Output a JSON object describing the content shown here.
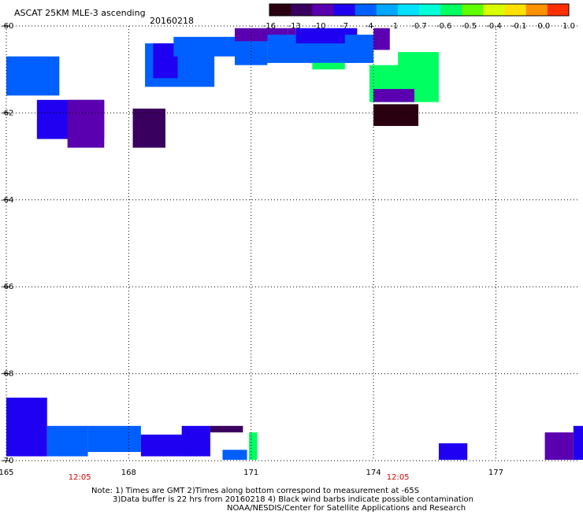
{
  "header": {
    "title": "ASCAT 25KM MLE-3 ascending",
    "date": "20160218"
  },
  "notes": {
    "line1": "Note: 1) Times are GMT 2)Times along bottom correspond to measurement at -65S",
    "line2": "3)Data buffer is 22 hrs from 20160218 4) Black wind barbs indicate possible contamination",
    "line3": "NOAA/NESDIS/Center for Satellite Applications and Research"
  },
  "colors": {
    "time_label": "#cc0000",
    "grid": "#000000",
    "scale": [
      "#2a0010",
      "#3a0060",
      "#5a00b0",
      "#2000f0",
      "#0060ff",
      "#00a8ff",
      "#00e0ff",
      "#00ffd8",
      "#00ff60",
      "#60ff00",
      "#d8ff00",
      "#ffe000",
      "#ff9000",
      "#ff3000"
    ]
  },
  "chart_data": {
    "type": "heatmap",
    "title": "ASCAT 25KM MLE-3 ascending",
    "subtitle": "20160218",
    "xlabel": "",
    "ylabel": "",
    "xlim": [
      165,
      179
    ],
    "ylim": [
      -60,
      -70
    ],
    "x_ticks": [
      "165",
      "168",
      "171",
      "174",
      "177"
    ],
    "y_ticks": [
      "-60",
      "-62",
      "-64",
      "-66",
      "-68",
      "-70"
    ],
    "colorbar_labels": [
      "-16",
      "-13",
      "-10",
      "-7",
      "-4",
      "-1",
      "-0.7",
      "-0.6",
      "-0.5",
      "-0.4",
      "-0.1",
      "0.0",
      "1.0"
    ],
    "time_labels": [
      {
        "text": "12:05",
        "lon": 166.8
      },
      {
        "text": "12:05",
        "lon": 174.6
      }
    ],
    "grid": true,
    "cells": [
      {
        "lon": [
          165.0,
          166.3
        ],
        "lat": [
          -60.7,
          -61.6
        ],
        "value": -2
      },
      {
        "lon": [
          165.75,
          167.4
        ],
        "lat": [
          -61.7,
          -62.6
        ],
        "value": -6
      },
      {
        "lon": [
          166.5,
          167.4
        ],
        "lat": [
          -61.7,
          -62.8
        ],
        "value": -8
      },
      {
        "lon": [
          168.1,
          168.9
        ],
        "lat": [
          -61.9,
          -62.8
        ],
        "value": -13
      },
      {
        "lon": [
          168.4,
          170.1
        ],
        "lat": [
          -60.4,
          -61.4
        ],
        "value": -3
      },
      {
        "lon": [
          168.6,
          169.2
        ],
        "lat": [
          -60.4,
          -61.2
        ],
        "value": -5
      },
      {
        "lon": [
          169.1,
          170.6
        ],
        "lat": [
          -60.25,
          -60.7
        ],
        "value": -2
      },
      {
        "lon": [
          170.6,
          171.4
        ],
        "lat": [
          -60.3,
          -60.9
        ],
        "value": -1.5
      },
      {
        "lon": [
          170.6,
          171.9
        ],
        "lat": [
          -60.05,
          -60.35
        ],
        "value": -8
      },
      {
        "lon": [
          171.9,
          172.1
        ],
        "lat": [
          -60.05,
          -60.35
        ],
        "value": -9
      },
      {
        "lon": [
          171.4,
          173.6
        ],
        "lat": [
          -60.2,
          -60.85
        ],
        "value": -2
      },
      {
        "lon": [
          172.1,
          173.6
        ],
        "lat": [
          -60.05,
          -60.4
        ],
        "value": -6
      },
      {
        "lon": [
          172.5,
          173.3
        ],
        "lat": [
          -60.85,
          -61.0
        ],
        "value": -0.6
      },
      {
        "lon": [
          173.3,
          174.0
        ],
        "lat": [
          -60.2,
          -60.85
        ],
        "value": -3
      },
      {
        "lon": [
          174.0,
          174.4
        ],
        "lat": [
          -60.05,
          -60.55
        ],
        "value": -8
      },
      {
        "lon": [
          174.6,
          175.6
        ],
        "lat": [
          -60.6,
          -61.75
        ],
        "value": -0.6
      },
      {
        "lon": [
          173.9,
          174.8
        ],
        "lat": [
          -60.9,
          -61.75
        ],
        "value": -0.6
      },
      {
        "lon": [
          174.0,
          175.0
        ],
        "lat": [
          -61.45,
          -61.75
        ],
        "value": -9
      },
      {
        "lon": [
          174.0,
          175.1
        ],
        "lat": [
          -61.8,
          -62.3
        ],
        "value": -16
      },
      {
        "lon": [
          165.0,
          166.0
        ],
        "lat": [
          -68.55,
          -69.9
        ],
        "value": -6
      },
      {
        "lon": [
          166.0,
          167.0
        ],
        "lat": [
          -69.2,
          -69.9
        ],
        "value": -2
      },
      {
        "lon": [
          167.0,
          168.3
        ],
        "lat": [
          -69.2,
          -69.8
        ],
        "value": -4
      },
      {
        "lon": [
          168.3,
          169.5
        ],
        "lat": [
          -69.4,
          -69.9
        ],
        "value": -7
      },
      {
        "lon": [
          169.3,
          170.0
        ],
        "lat": [
          -69.2,
          -69.9
        ],
        "value": -5
      },
      {
        "lon": [
          170.0,
          170.8
        ],
        "lat": [
          -69.2,
          -69.35
        ],
        "value": -13
      },
      {
        "lon": [
          170.3,
          170.9
        ],
        "lat": [
          -69.75,
          -69.98
        ],
        "value": -2
      },
      {
        "lon": [
          170.95,
          171.15
        ],
        "lat": [
          -69.35,
          -69.98
        ],
        "value": -0.6
      },
      {
        "lon": [
          175.6,
          176.3
        ],
        "lat": [
          -69.6,
          -69.98
        ],
        "value": -6
      },
      {
        "lon": [
          178.2,
          178.9
        ],
        "lat": [
          -69.35,
          -69.98
        ],
        "value": -9
      },
      {
        "lon": [
          178.9,
          179.2
        ],
        "lat": [
          -69.2,
          -69.98
        ],
        "value": -7
      }
    ]
  }
}
